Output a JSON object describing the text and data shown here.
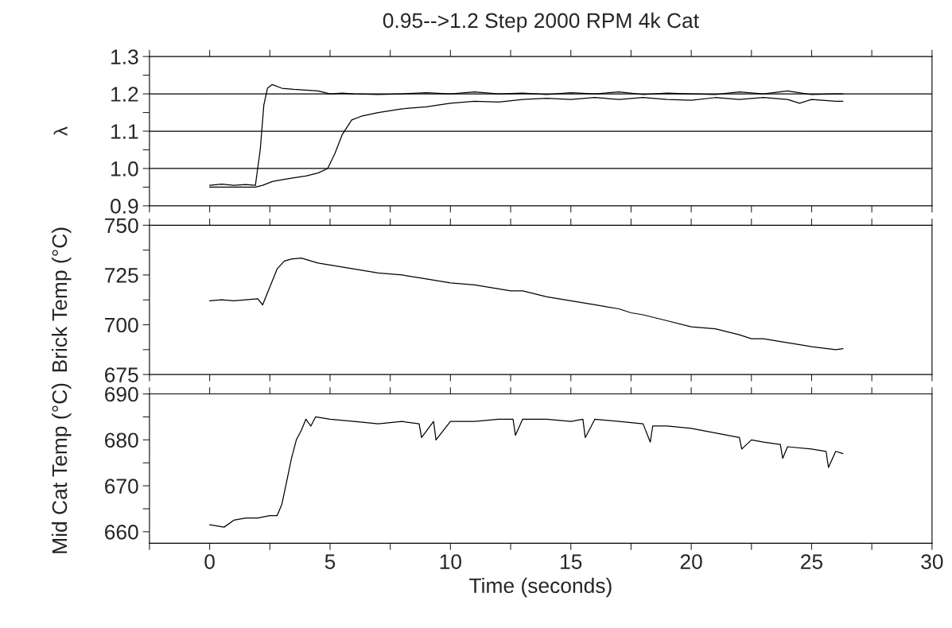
{
  "chart_data": [
    {
      "type": "line",
      "title": "0.95-->1.2 Step 2000 RPM 4k Cat",
      "ylabel": "λ",
      "xlim": [
        -2.5,
        30
      ],
      "xticks": [
        {
          "value": -2.5,
          "label": null
        },
        0,
        {
          "value": 2.5,
          "label": null
        },
        5,
        {
          "value": 7.5,
          "label": null
        },
        10,
        {
          "value": 12.5,
          "label": null
        },
        15,
        {
          "value": 17.5,
          "label": null
        },
        20,
        {
          "value": 22.5,
          "label": null
        },
        25,
        {
          "value": 27.5,
          "label": null
        },
        30
      ],
      "ylim": [
        0.9,
        1.3
      ],
      "yticks": [
        0.9,
        {
          "value": 0.95,
          "label": null
        },
        {
          "value": 1.0,
          "label": "1.0"
        },
        {
          "value": 1.05,
          "label": null
        },
        1.1,
        {
          "value": 1.15,
          "label": null
        },
        1.2,
        {
          "value": 1.25,
          "label": null
        },
        1.3
      ],
      "tick_labels": "y",
      "grid": false,
      "legend": false,
      "ref_lines": [
        {
          "axis": "y",
          "value": 1.2,
          "color": "#000000"
        },
        {
          "axis": "y",
          "value": 1.1,
          "color": "#000000"
        },
        {
          "axis": "y",
          "value": 1.0,
          "color": "#000000"
        }
      ],
      "series": [
        {
          "color": "#000000",
          "x": [
            0,
            0.5,
            1,
            1.5,
            1.9,
            2.1,
            2.25,
            2.4,
            2.6,
            3,
            3.5,
            4,
            4.5,
            5,
            5.5,
            6,
            7,
            8,
            9,
            10,
            11,
            12,
            13,
            14,
            15,
            16,
            17,
            18,
            19,
            20,
            21,
            22,
            23,
            24,
            25,
            26,
            26.3
          ],
          "values": [
            0.955,
            0.958,
            0.955,
            0.957,
            0.955,
            1.05,
            1.17,
            1.215,
            1.225,
            1.215,
            1.212,
            1.21,
            1.208,
            1.2,
            1.202,
            1.2,
            1.198,
            1.2,
            1.203,
            1.2,
            1.205,
            1.2,
            1.202,
            1.198,
            1.203,
            1.2,
            1.205,
            1.198,
            1.202,
            1.2,
            1.198,
            1.205,
            1.2,
            1.208,
            1.198,
            1.2,
            1.2
          ]
        },
        {
          "color": "#000000",
          "x": [
            0,
            1,
            1.9,
            2.2,
            2.6,
            3,
            3.5,
            4,
            4.5,
            4.9,
            5.2,
            5.5,
            5.9,
            6.3,
            7,
            8,
            9,
            10,
            11,
            12,
            13,
            14,
            15,
            16,
            17,
            18,
            19,
            20,
            21,
            22,
            23,
            24,
            24.5,
            25,
            26,
            26.3
          ],
          "values": [
            0.95,
            0.95,
            0.95,
            0.955,
            0.965,
            0.97,
            0.975,
            0.98,
            0.988,
            1.0,
            1.04,
            1.09,
            1.13,
            1.14,
            1.15,
            1.16,
            1.165,
            1.175,
            1.18,
            1.178,
            1.185,
            1.188,
            1.185,
            1.19,
            1.185,
            1.19,
            1.185,
            1.183,
            1.19,
            1.185,
            1.19,
            1.185,
            1.175,
            1.185,
            1.18,
            1.18
          ]
        }
      ]
    },
    {
      "type": "line",
      "ylabel": "Brick Temp (°C)",
      "xlim": [
        -2.5,
        30
      ],
      "xticks": [
        {
          "value": -2.5,
          "label": null
        },
        0,
        {
          "value": 2.5,
          "label": null
        },
        5,
        {
          "value": 7.5,
          "label": null
        },
        10,
        {
          "value": 12.5,
          "label": null
        },
        15,
        {
          "value": 17.5,
          "label": null
        },
        20,
        {
          "value": 22.5,
          "label": null
        },
        25,
        {
          "value": 27.5,
          "label": null
        },
        30
      ],
      "ylim": [
        675,
        750
      ],
      "yticks": [
        675,
        {
          "value": 687.5,
          "label": null
        },
        700,
        {
          "value": 712.5,
          "label": null
        },
        725,
        {
          "value": 737.5,
          "label": null
        },
        750
      ],
      "tick_labels": "y",
      "grid": false,
      "legend": false,
      "series": [
        {
          "color": "#000000",
          "x": [
            0,
            0.5,
            1,
            1.5,
            2,
            2.2,
            2.4,
            2.6,
            2.8,
            3.1,
            3.4,
            3.8,
            4.5,
            5,
            6,
            7,
            8,
            9,
            10,
            11,
            12,
            12.5,
            13,
            14,
            15,
            16,
            17,
            17.5,
            18,
            19,
            20,
            21,
            22,
            22.5,
            23,
            24,
            25,
            26,
            26.3
          ],
          "values": [
            712,
            712.5,
            712,
            712.5,
            713,
            710,
            716,
            722,
            728,
            732,
            733,
            733.5,
            731,
            730,
            728,
            726,
            725,
            723,
            721,
            720,
            718,
            717,
            717,
            714,
            712,
            710,
            708,
            706,
            705,
            702,
            699,
            698,
            695,
            693,
            693,
            691,
            689,
            687.5,
            688
          ]
        }
      ]
    },
    {
      "type": "line",
      "ylabel": "Mid Cat Temp (°C)",
      "xlabel": "Time (seconds)",
      "xlim": [
        -2.5,
        30
      ],
      "xticks": [
        {
          "value": -2.5,
          "label": null
        },
        0,
        {
          "value": 2.5,
          "label": null
        },
        5,
        {
          "value": 7.5,
          "label": null
        },
        10,
        {
          "value": 12.5,
          "label": null
        },
        15,
        {
          "value": 17.5,
          "label": null
        },
        20,
        {
          "value": 22.5,
          "label": null
        },
        25,
        {
          "value": 27.5,
          "label": null
        },
        30
      ],
      "ylim": [
        657.5,
        690
      ],
      "yticks": [
        660,
        {
          "value": 665,
          "label": null
        },
        670,
        {
          "value": 675,
          "label": null
        },
        680,
        {
          "value": 685,
          "label": null
        },
        690
      ],
      "grid": false,
      "legend": false,
      "series": [
        {
          "color": "#000000",
          "x": [
            0,
            0.6,
            1,
            1.5,
            2,
            2.5,
            2.8,
            3,
            3.2,
            3.4,
            3.6,
            3.8,
            4,
            4.2,
            4.4,
            5,
            6,
            7,
            8,
            8.7,
            8.8,
            9.3,
            9.4,
            10,
            11,
            12,
            12.6,
            12.7,
            13,
            14,
            15,
            15.5,
            15.6,
            16,
            17,
            18,
            18.3,
            18.4,
            19,
            20,
            21,
            22,
            22.1,
            22.5,
            23,
            23.7,
            23.8,
            24,
            25,
            25.6,
            25.7,
            26,
            26.3
          ],
          "values": [
            661.5,
            661,
            662.5,
            663,
            663,
            663.5,
            663.5,
            666,
            671,
            676,
            680,
            682,
            684.5,
            683,
            685,
            684.5,
            684,
            683.5,
            684,
            683.5,
            680.5,
            684,
            680,
            684,
            684,
            684.5,
            684.5,
            681,
            684.5,
            684.5,
            684,
            684.5,
            680.5,
            684.5,
            684,
            683.5,
            679.5,
            683,
            683,
            682.5,
            681.5,
            680.5,
            678,
            680,
            679.5,
            679,
            676,
            678.5,
            678,
            677.5,
            674,
            677.5,
            677
          ]
        }
      ]
    }
  ]
}
